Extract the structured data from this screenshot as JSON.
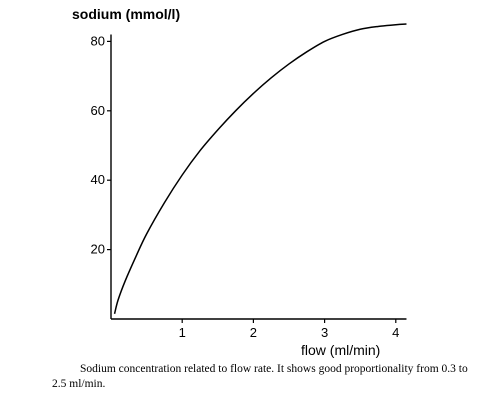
{
  "chart_data": {
    "type": "line",
    "ylabel": "sodium (mmol/l)",
    "xlabel": "flow (ml/min)",
    "xlim": [
      0,
      4.15
    ],
    "ylim": [
      0,
      84
    ],
    "x_ticks": [
      1,
      2,
      3,
      4
    ],
    "y_ticks": [
      20,
      40,
      60,
      80
    ],
    "grid": false,
    "series": [
      {
        "x": [
          0.05,
          0.1,
          0.2,
          0.35,
          0.5,
          0.75,
          1.0,
          1.25,
          1.5,
          1.75,
          2.0,
          2.25,
          2.5,
          2.75,
          3.0,
          3.25,
          3.5,
          3.75,
          4.0,
          4.15
        ],
        "values": [
          1.5,
          5.5,
          11,
          18,
          24.5,
          33.5,
          41.5,
          48.5,
          54.5,
          60,
          65,
          69.5,
          73.5,
          77,
          80,
          82,
          83.5,
          84.3,
          84.8,
          85
        ]
      }
    ]
  },
  "caption": "Sodium concentration related to flow rate. It shows good proportionality from 0.3 to 2.5 ml/min."
}
